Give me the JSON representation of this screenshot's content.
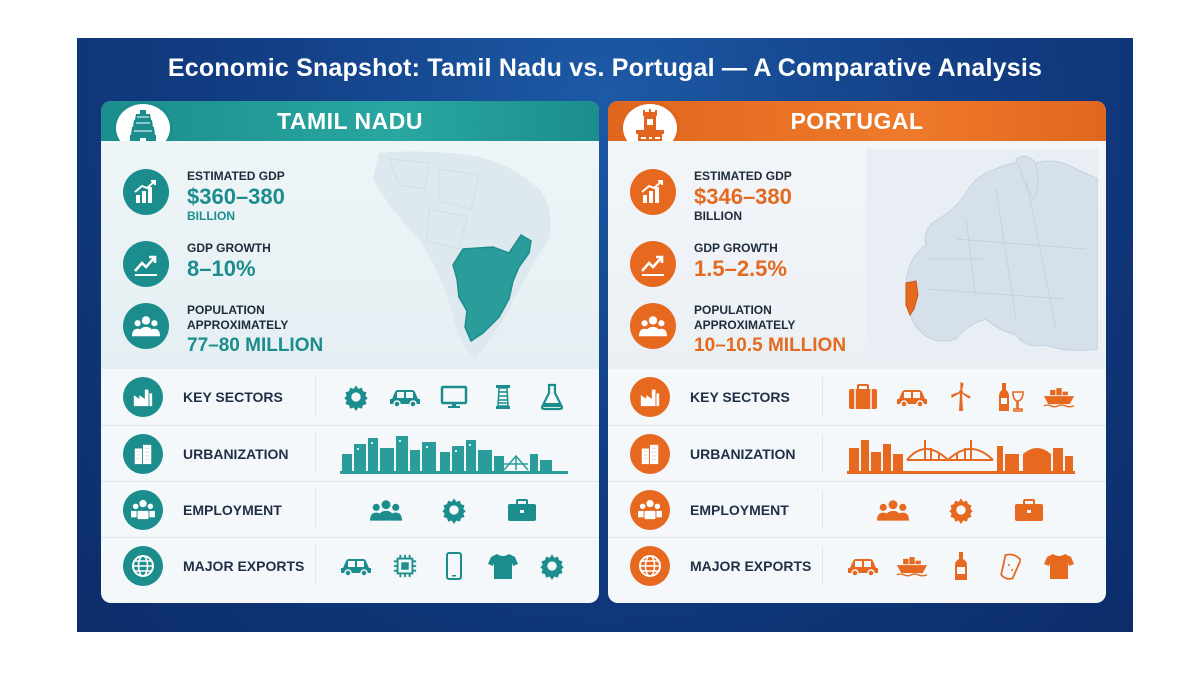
{
  "title": "Economic Snapshot: Tamil Nadu vs. Portugal — A Comparative Analysis",
  "colors": {
    "background": "#123f86",
    "tamil_nadu_accent": "#1b8d8d",
    "portugal_accent": "#e6691f"
  },
  "panels": {
    "tamil_nadu": {
      "name": "TAMIL NADU",
      "emblem_icon": "temple-gopuram-icon",
      "gdp": {
        "label": "ESTIMATED GDP",
        "value": "$360–380",
        "unit": "BILLION"
      },
      "growth": {
        "label": "GDP GROWTH",
        "value": "8–10%"
      },
      "population": {
        "label": "POPULATION",
        "qualifier": "APPROXIMATELY",
        "value": "77–80 MILLION"
      },
      "map_icon": "india-map-tamil-nadu-highlight",
      "rows": [
        {
          "label": "KEY SECTORS",
          "icons": [
            "gear-icon",
            "car-icon",
            "monitor-icon",
            "textile-spool-icon",
            "flask-icon"
          ]
        },
        {
          "label": "URBANIZATION",
          "icons": [
            "city-skyline-icon"
          ]
        },
        {
          "label": "EMPLOYMENT",
          "icons": [
            "people-group-icon",
            "gear-icon",
            "briefcase-icon"
          ]
        },
        {
          "label": "MAJOR EXPORTS",
          "icons": [
            "car-icon",
            "chip-icon",
            "phone-icon",
            "tshirt-icon",
            "gear-icon"
          ]
        }
      ]
    },
    "portugal": {
      "name": "PORTUGAL",
      "emblem_icon": "belem-tower-icon",
      "gdp": {
        "label": "ESTIMATED GDP",
        "value": "$346–380",
        "unit": "BILLION"
      },
      "growth": {
        "label": "GDP GROWTH",
        "value": "1.5–2.5%"
      },
      "population": {
        "label": "POPULATION",
        "qualifier": "APPROXIMATELY",
        "value": "10–10.5 MILLION"
      },
      "map_icon": "europe-map-portugal-highlight",
      "rows": [
        {
          "label": "KEY SECTORS",
          "icons": [
            "suitcase-icon",
            "car-icon",
            "wind-turbine-icon",
            "wine-icon",
            "ship-icon"
          ]
        },
        {
          "label": "URBANIZATION",
          "icons": [
            "city-bridge-skyline-icon"
          ]
        },
        {
          "label": "EMPLOYMENT",
          "icons": [
            "people-group-icon",
            "gear-icon",
            "briefcase-icon"
          ]
        },
        {
          "label": "MAJOR EXPORTS",
          "icons": [
            "car-icon",
            "ship-icon",
            "wine-bottle-icon",
            "cork-icon",
            "tshirt-icon"
          ]
        }
      ]
    }
  }
}
